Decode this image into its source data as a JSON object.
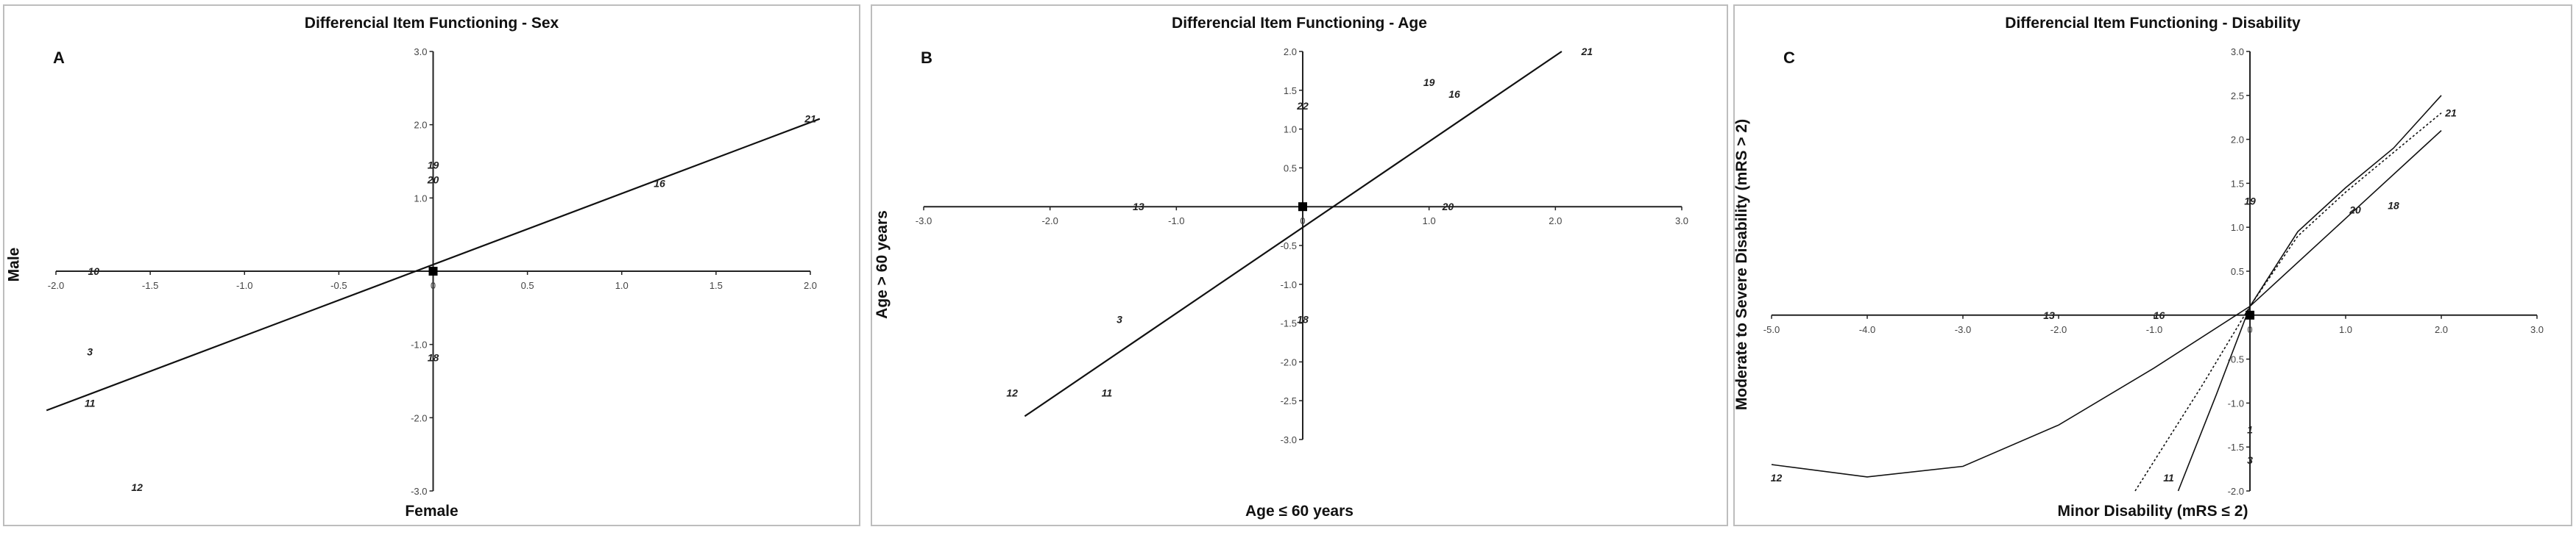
{
  "chart_data": [
    {
      "type": "scatter",
      "panel_letter": "A",
      "title": "Differencial Item Functioning - Sex",
      "xlabel": "Female",
      "ylabel": "Male",
      "xlim": [
        -2.0,
        2.0
      ],
      "ylim": [
        -3.0,
        3.0
      ],
      "x_ticks": [
        "-2.0",
        "-1.5",
        "-1.0",
        "-0.5",
        "0",
        "0.5",
        "1.0",
        "1.5",
        "2.0"
      ],
      "y_ticks": [
        "3.0",
        "2.0",
        "1.0",
        "-1.0",
        "-2.0",
        "-3.0"
      ],
      "points": [
        {
          "label": "10",
          "x": -1.8,
          "y": 0.0
        },
        {
          "label": "3",
          "x": -1.82,
          "y": -1.1
        },
        {
          "label": "11",
          "x": -1.82,
          "y": -1.8
        },
        {
          "label": "12",
          "x": -1.57,
          "y": -2.95
        },
        {
          "label": "19",
          "x": 0.0,
          "y": 1.45
        },
        {
          "label": "20",
          "x": 0.0,
          "y": 1.25
        },
        {
          "label": "18",
          "x": 0.0,
          "y": -1.18
        },
        {
          "label": "16",
          "x": 1.2,
          "y": 1.2
        },
        {
          "label": "21",
          "x": 2.0,
          "y": 2.08
        }
      ],
      "origin_marker": true,
      "reference_lines": [
        {
          "type": "line",
          "from": [
            -2.05,
            -1.9
          ],
          "to": [
            2.05,
            2.08
          ]
        }
      ]
    },
    {
      "type": "scatter",
      "panel_letter": "B",
      "title": "Differencial Item Functioning - Age",
      "xlabel": "Age ≤ 60 years",
      "ylabel": "Age > 60 years",
      "xlim": [
        -3.0,
        3.0
      ],
      "ylim": [
        -3.0,
        2.0
      ],
      "x_ticks": [
        "-3.0",
        "-2.0",
        "-1.0",
        "0",
        "1.0",
        "2.0",
        "3.0"
      ],
      "y_ticks": [
        "2.0",
        "1.5",
        "1.0",
        "0.5",
        "-0.5",
        "-1.0",
        "-1.5",
        "-2.0",
        "-2.5",
        "-3.0"
      ],
      "points": [
        {
          "label": "13",
          "x": -1.3,
          "y": 0.0
        },
        {
          "label": "3",
          "x": -1.45,
          "y": -1.45
        },
        {
          "label": "12",
          "x": -2.3,
          "y": -2.4
        },
        {
          "label": "11",
          "x": -1.55,
          "y": -2.4
        },
        {
          "label": "22",
          "x": 0.0,
          "y": 1.3
        },
        {
          "label": "19",
          "x": 1.0,
          "y": 1.6
        },
        {
          "label": "16",
          "x": 1.2,
          "y": 1.45
        },
        {
          "label": "20",
          "x": 1.15,
          "y": 0.0
        },
        {
          "label": "18",
          "x": 0.0,
          "y": -1.45
        },
        {
          "label": "21",
          "x": 2.25,
          "y": 2.0
        }
      ],
      "origin_marker": true,
      "reference_lines": [
        {
          "type": "line",
          "from": [
            -2.2,
            -2.7
          ],
          "to": [
            2.05,
            2.0
          ]
        }
      ]
    },
    {
      "type": "scatter",
      "panel_letter": "C",
      "title": "Differencial Item Functioning - Disability",
      "xlabel": "Minor Disability (mRS ≤ 2)",
      "ylabel": "Moderate to Severe Disability  (mRS > 2)",
      "xlim": [
        -5.0,
        3.0
      ],
      "ylim": [
        -2.0,
        3.0
      ],
      "x_ticks": [
        "-5.0",
        "-4.0",
        "-3.0",
        "-2.0",
        "-1.0",
        "0",
        "1.0",
        "2.0",
        "3.0"
      ],
      "y_ticks": [
        "3.0",
        "2.5",
        "2.0",
        "1.5",
        "1.0",
        "0.5",
        "-0.5",
        "-1.0",
        "-1.5",
        "-2.0"
      ],
      "points": [
        {
          "label": "13",
          "x": -2.1,
          "y": 0.0
        },
        {
          "label": "16",
          "x": -0.95,
          "y": 0.0
        },
        {
          "label": "12",
          "x": -4.95,
          "y": -1.85
        },
        {
          "label": "11",
          "x": -0.85,
          "y": -1.85
        },
        {
          "label": "19",
          "x": 0.0,
          "y": 1.3
        },
        {
          "label": "20",
          "x": 1.1,
          "y": 1.2
        },
        {
          "label": "18",
          "x": 1.5,
          "y": 1.25
        },
        {
          "label": "21",
          "x": 2.1,
          "y": 2.3
        },
        {
          "label": "1",
          "x": 0.0,
          "y": -1.3
        },
        {
          "label": "3",
          "x": 0.0,
          "y": -1.65
        }
      ],
      "origin_marker": true,
      "reference_lines": [
        {
          "type": "curve",
          "points": [
            [
              -5.0,
              -1.7
            ],
            [
              -4.0,
              -1.84
            ],
            [
              -3.0,
              -1.72
            ],
            [
              -2.0,
              -1.25
            ],
            [
              -1.0,
              -0.6
            ],
            [
              0.0,
              0.1
            ],
            [
              1.0,
              1.1
            ],
            [
              2.0,
              2.1
            ]
          ]
        },
        {
          "type": "dotted",
          "points": [
            [
              -1.2,
              -2.0
            ],
            [
              -0.5,
              -0.8
            ],
            [
              0.0,
              0.1
            ],
            [
              0.5,
              0.9
            ],
            [
              1.0,
              1.4
            ],
            [
              1.5,
              1.85
            ],
            [
              2.0,
              2.3
            ]
          ]
        },
        {
          "type": "curve",
          "points": [
            [
              -0.75,
              -2.0
            ],
            [
              -0.35,
              -0.9
            ],
            [
              0.0,
              0.1
            ],
            [
              0.5,
              0.95
            ],
            [
              1.0,
              1.45
            ],
            [
              1.5,
              1.9
            ],
            [
              2.0,
              2.5
            ]
          ]
        }
      ]
    }
  ]
}
